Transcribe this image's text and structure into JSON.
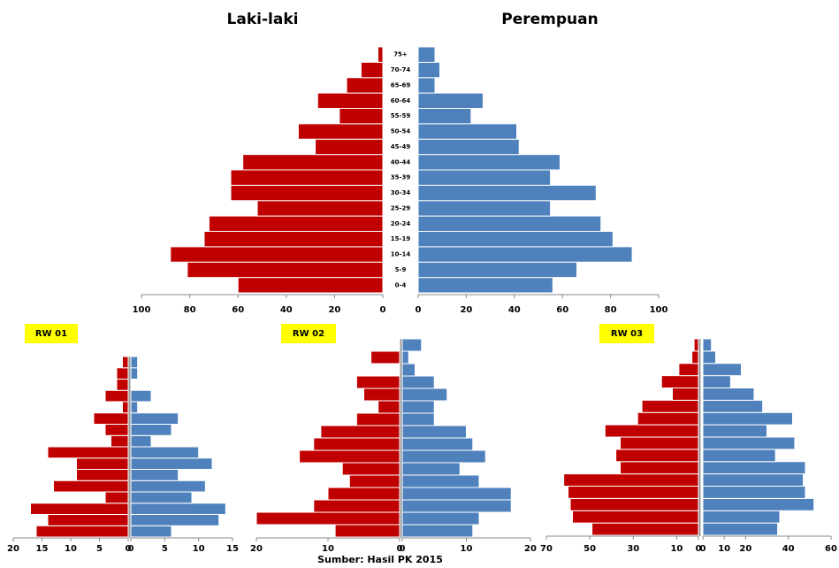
{
  "chart_data": [
    {
      "type": "pyramid",
      "categories": [
        "0-4",
        "5-9",
        "10-14",
        "15-19",
        "20-24",
        "25-29",
        "30-34",
        "35-39",
        "40-44",
        "45-49",
        "50-54",
        "55-59",
        "60-64",
        "65-69",
        "70-74",
        "75+"
      ],
      "series": [
        {
          "name": "Laki-laki",
          "color": "#c00000",
          "values": [
            60,
            81,
            88,
            74,
            72,
            52,
            63,
            63,
            58,
            28,
            35,
            18,
            27,
            15,
            9,
            2
          ],
          "xlim": [
            100,
            0
          ],
          "xticks": [
            100,
            80,
            60,
            40,
            20,
            0
          ]
        },
        {
          "name": "Perempuan",
          "color": "#4f81bd",
          "values": [
            56,
            66,
            89,
            81,
            76,
            55,
            74,
            55,
            59,
            42,
            41,
            22,
            27,
            7,
            9,
            7
          ],
          "xlim": [
            0,
            100
          ],
          "xticks": [
            0,
            20,
            40,
            60,
            80,
            100
          ]
        }
      ]
    },
    {
      "type": "pyramid",
      "title": "RW 01",
      "categories": [
        null,
        null,
        null,
        null,
        null,
        null,
        null,
        null,
        null,
        null,
        null,
        null,
        null,
        null,
        null,
        null
      ],
      "series": [
        {
          "color": "#c00000",
          "values": [
            16,
            14,
            17,
            4,
            13,
            9,
            9,
            14,
            3,
            4,
            6,
            1,
            4,
            2,
            2,
            1
          ],
          "xlim": [
            20,
            0
          ],
          "xticks": [
            20,
            15,
            10,
            5,
            0
          ]
        },
        {
          "color": "#4f81bd",
          "values": [
            6,
            13,
            14,
            9,
            11,
            7,
            12,
            10,
            3,
            6,
            7,
            1,
            3,
            0,
            1,
            1
          ],
          "xlim": [
            0,
            15
          ],
          "xticks": [
            0,
            5,
            10,
            15
          ]
        }
      ]
    },
    {
      "type": "pyramid",
      "title": "RW 02",
      "categories": [
        null,
        null,
        null,
        null,
        null,
        null,
        null,
        null,
        null,
        null,
        null,
        null,
        null,
        null,
        null,
        null
      ],
      "series": [
        {
          "color": "#c00000",
          "values": [
            9,
            20,
            12,
            10,
            7,
            8,
            14,
            12,
            11,
            6,
            3,
            5,
            6,
            0,
            4,
            0
          ],
          "xlim": [
            20,
            0
          ],
          "xticks": [
            20,
            10,
            0
          ]
        },
        {
          "color": "#4f81bd",
          "values": [
            11,
            12,
            17,
            17,
            12,
            9,
            13,
            11,
            10,
            5,
            5,
            7,
            5,
            2,
            1,
            3
          ],
          "xlim": [
            0,
            20
          ],
          "xticks": [
            0,
            10,
            20
          ]
        }
      ]
    },
    {
      "type": "pyramid",
      "title": "RW 03",
      "categories": [
        null,
        null,
        null,
        null,
        null,
        null,
        null,
        null,
        null,
        null,
        null,
        null,
        null,
        null,
        null,
        null
      ],
      "series": [
        {
          "color": "#c00000",
          "values": [
            49,
            58,
            59,
            60,
            62,
            36,
            38,
            36,
            43,
            28,
            26,
            12,
            17,
            9,
            3,
            2
          ],
          "xlim": [
            70,
            0
          ],
          "xticks": [
            70,
            50,
            30,
            10,
            0
          ]
        },
        {
          "color": "#4f81bd",
          "values": [
            35,
            36,
            52,
            48,
            47,
            48,
            34,
            43,
            30,
            42,
            28,
            24,
            13,
            18,
            6,
            4
          ],
          "xlim": [
            0,
            60
          ],
          "xticks": [
            0,
            10,
            20,
            40,
            60
          ]
        }
      ]
    }
  ],
  "source": "Sumber: Hasil PK 2015"
}
